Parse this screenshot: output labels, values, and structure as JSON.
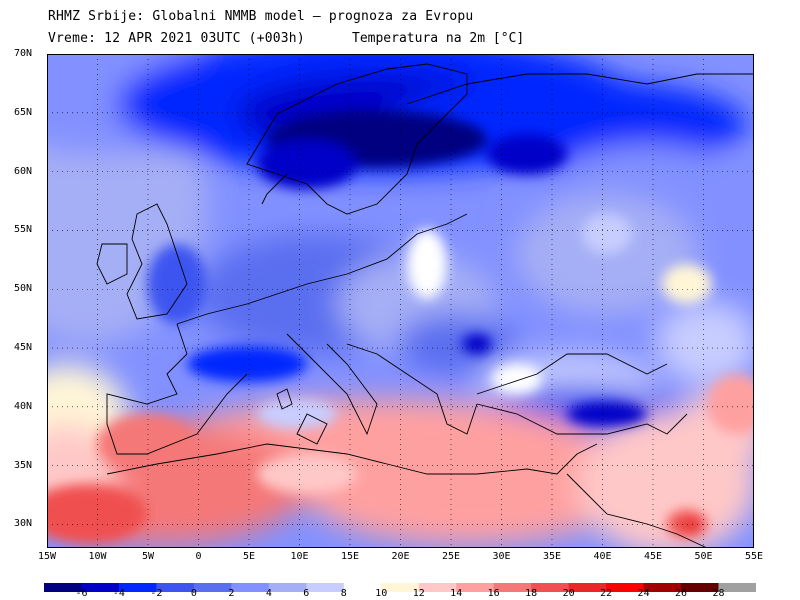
{
  "header": {
    "line1": "RHMZ Srbije: Globalni NMMB model – prognoza za Evropu",
    "line2": "Vreme: 12 APR 2021 03UTC (+003h)",
    "variable": "Temperatura na 2m [°C]"
  },
  "map": {
    "lon_range": [
      -15,
      55
    ],
    "lat_range": [
      28,
      70
    ],
    "lat_labels": [
      "70N",
      "65N",
      "60N",
      "55N",
      "50N",
      "45N",
      "40N",
      "35N",
      "30N"
    ],
    "lat_values": [
      70,
      65,
      60,
      55,
      50,
      45,
      40,
      35,
      30
    ],
    "lon_labels": [
      "15W",
      "10W",
      "5W",
      "0",
      "5E",
      "10E",
      "15E",
      "20E",
      "25E",
      "30E",
      "35E",
      "40E",
      "45E",
      "50E",
      "55E"
    ],
    "lon_values": [
      -15,
      -10,
      -5,
      0,
      5,
      10,
      15,
      20,
      25,
      30,
      35,
      40,
      45,
      50,
      55
    ],
    "grid": true
  },
  "colorbar": {
    "labels": [
      "-6",
      "-4",
      "-2",
      "0",
      "2",
      "4",
      "6",
      "8",
      "10",
      "12",
      "14",
      "16",
      "18",
      "20",
      "22",
      "24",
      "26",
      "28"
    ],
    "colors": [
      "#000080",
      "#0000c8",
      "#0028ff",
      "#3c55f0",
      "#5a6ef0",
      "#8291ff",
      "#a5aff5",
      "#c8cdff",
      "#ffffff",
      "#fff5d7",
      "#ffc8c8",
      "#ffa0a0",
      "#f57878",
      "#f05050",
      "#e62828",
      "#ff0000",
      "#a00000",
      "#640000",
      "#a0a0a0"
    ]
  }
}
